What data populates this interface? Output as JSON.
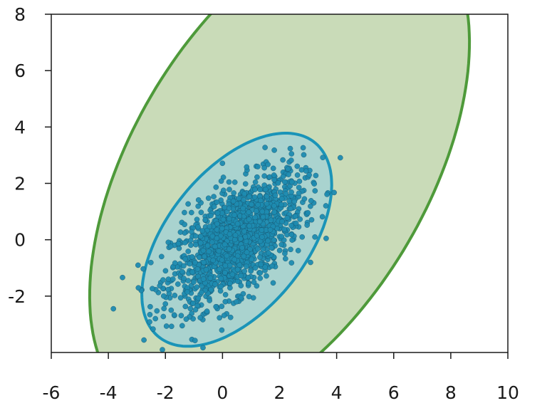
{
  "chart_data": {
    "type": "scatter",
    "title": "",
    "xlabel": "",
    "ylabel": "",
    "xlim": [
      -6,
      10
    ],
    "ylim": [
      -4,
      8
    ],
    "x_ticks": [
      -6,
      -4,
      -2,
      0,
      2,
      4,
      6,
      8,
      10
    ],
    "y_ticks": [
      -2,
      0,
      2,
      4,
      6,
      8
    ],
    "grid": false,
    "legend": "none",
    "colors": {
      "points": "#1e8bb0",
      "inner_ellipse_stroke": "#1a94b8",
      "inner_ellipse_fill": "#a9d3cf",
      "outer_ellipse_stroke": "#4e9a3a",
      "outer_ellipse_fill": "#c9dbb8",
      "axis": "#1a1a1a"
    },
    "scatter": {
      "count": 1500,
      "mean": [
        0.5,
        0
      ],
      "std": [
        1.15,
        1.15
      ],
      "correlation": 0.6
    },
    "ellipses": [
      {
        "name": "inner",
        "center": [
          0.5,
          0
        ],
        "semi_major": 4.4,
        "semi_minor": 2.45,
        "angle_deg": 52
      },
      {
        "name": "outer",
        "center": [
          2.0,
          2.5
        ],
        "semi_major": 9.8,
        "semi_minor": 5.2,
        "angle_deg": 60
      }
    ]
  }
}
